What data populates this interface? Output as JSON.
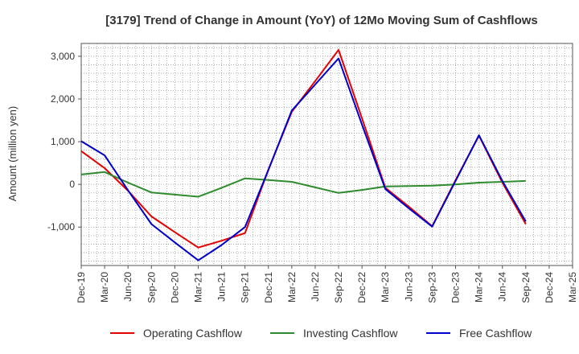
{
  "chart_data": {
    "type": "line",
    "title": "[3179]  Trend of Change in Amount (YoY) of 12Mo Moving Sum of Cashflows",
    "xlabel": "",
    "ylabel": "Amount (million yen)",
    "categories": [
      "Dec-19",
      "Mar-20",
      "Jun-20",
      "Sep-20",
      "Dec-20",
      "Mar-21",
      "Jun-21",
      "Sep-21",
      "Dec-21",
      "Mar-22",
      "Jun-22",
      "Sep-22",
      "Dec-22",
      "Mar-23",
      "Jun-23",
      "Sep-23",
      "Dec-23",
      "Mar-24",
      "Jun-24",
      "Sep-24",
      "Dec-24",
      "Mar-25"
    ],
    "x_tick_labels": [
      "Dec-19",
      "Mar-20",
      "Jun-20",
      "Sep-20",
      "Dec-20",
      "Mar-21",
      "Jun-21",
      "Sep-21",
      "Dec-21",
      "Mar-22",
      "Jun-22",
      "Sep-22",
      "Dec-22",
      "Mar-23",
      "Jun-23",
      "Sep-23",
      "Dec-23",
      "Mar-24",
      "Jun-24",
      "Sep-24",
      "Dec-24",
      "Mar-25"
    ],
    "y_ticks": [
      -1000,
      0,
      1000,
      2000,
      3000
    ],
    "y_tick_labels": [
      "-1,000",
      "0",
      "1,000",
      "2,000",
      "3,000"
    ],
    "ylim": [
      -1900,
      3300
    ],
    "grid": true,
    "legend_position": "bottom",
    "series": [
      {
        "name": "Operating Cashflow",
        "color": "#e60000",
        "values": [
          780,
          380,
          -150,
          -750,
          -1120,
          -1480,
          -1320,
          -1140,
          350,
          1700,
          2420,
          3150,
          1550,
          -80,
          -520,
          -980,
          100,
          1140,
          40,
          -930,
          null,
          null
        ]
      },
      {
        "name": "Investing Cashflow",
        "color": "#2e8b2e",
        "values": [
          230,
          290,
          40,
          -190,
          -240,
          -290,
          -80,
          140,
          100,
          60,
          -70,
          -200,
          -130,
          -50,
          -40,
          -30,
          0,
          40,
          60,
          80,
          null,
          null
        ]
      },
      {
        "name": "Free Cashflow",
        "color": "#0000cc",
        "values": [
          1010,
          680,
          -140,
          -930,
          -1360,
          -1780,
          -1420,
          -1000,
          340,
          1730,
          2340,
          2950,
          1400,
          -110,
          -560,
          -990,
          80,
          1150,
          80,
          -870,
          null,
          null
        ]
      }
    ]
  }
}
